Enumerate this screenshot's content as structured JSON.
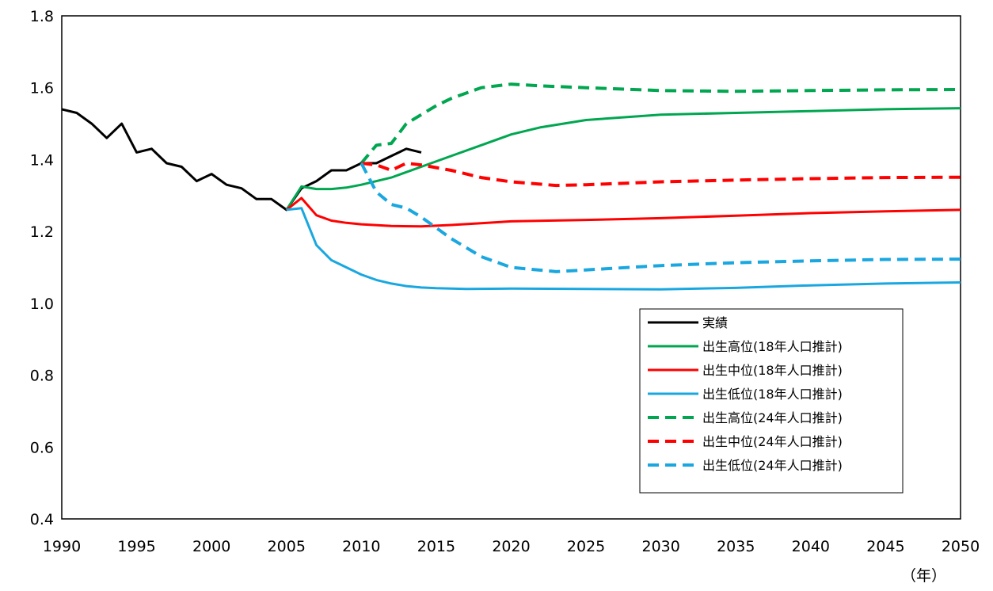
{
  "chart_data": {
    "type": "line",
    "title": "",
    "xlabel": "（年）",
    "ylabel": "",
    "xlim": [
      1990,
      2050
    ],
    "ylim": [
      0.4,
      1.8
    ],
    "xticks": [
      1990,
      1995,
      2000,
      2005,
      2010,
      2015,
      2020,
      2025,
      2030,
      2035,
      2040,
      2045,
      2050
    ],
    "yticks": [
      "0.4",
      "0.6",
      "0.8",
      "1.0",
      "1.2",
      "1.4",
      "1.6",
      "1.8"
    ],
    "grid": false,
    "legend_position": "bottom-right",
    "series": [
      {
        "name": "実績",
        "color": "#000000",
        "dash": "solid",
        "points": [
          [
            1990,
            1.54
          ],
          [
            1991,
            1.53
          ],
          [
            1992,
            1.5
          ],
          [
            1993,
            1.46
          ],
          [
            1994,
            1.5
          ],
          [
            1995,
            1.42
          ],
          [
            1996,
            1.43
          ],
          [
            1997,
            1.39
          ],
          [
            1998,
            1.38
          ],
          [
            1999,
            1.34
          ],
          [
            2000,
            1.36
          ],
          [
            2001,
            1.33
          ],
          [
            2002,
            1.32
          ],
          [
            2003,
            1.29
          ],
          [
            2004,
            1.29
          ],
          [
            2005,
            1.26
          ],
          [
            2006,
            1.32
          ],
          [
            2007,
            1.34
          ],
          [
            2008,
            1.37
          ],
          [
            2009,
            1.37
          ],
          [
            2010,
            1.39
          ],
          [
            2011,
            1.39
          ],
          [
            2012,
            1.41
          ],
          [
            2013,
            1.43
          ],
          [
            2014,
            1.42
          ]
        ]
      },
      {
        "name": "出生高位(18年人口推計)",
        "color": "#00a650",
        "dash": "solid",
        "points": [
          [
            2005,
            1.26
          ],
          [
            2006,
            1.325
          ],
          [
            2007,
            1.318
          ],
          [
            2008,
            1.318
          ],
          [
            2009,
            1.322
          ],
          [
            2010,
            1.33
          ],
          [
            2012,
            1.35
          ],
          [
            2014,
            1.38
          ],
          [
            2016,
            1.41
          ],
          [
            2018,
            1.44
          ],
          [
            2020,
            1.47
          ],
          [
            2022,
            1.49
          ],
          [
            2025,
            1.51
          ],
          [
            2030,
            1.525
          ],
          [
            2035,
            1.53
          ],
          [
            2040,
            1.535
          ],
          [
            2045,
            1.54
          ],
          [
            2050,
            1.543
          ]
        ]
      },
      {
        "name": "出生中位(18年人口推計)",
        "color": "#ff0000",
        "dash": "solid",
        "points": [
          [
            2005,
            1.26
          ],
          [
            2006,
            1.293
          ],
          [
            2007,
            1.245
          ],
          [
            2008,
            1.23
          ],
          [
            2009,
            1.224
          ],
          [
            2010,
            1.22
          ],
          [
            2012,
            1.215
          ],
          [
            2014,
            1.214
          ],
          [
            2016,
            1.218
          ],
          [
            2018,
            1.223
          ],
          [
            2020,
            1.228
          ],
          [
            2025,
            1.232
          ],
          [
            2030,
            1.237
          ],
          [
            2035,
            1.244
          ],
          [
            2040,
            1.251
          ],
          [
            2045,
            1.256
          ],
          [
            2050,
            1.26
          ]
        ]
      },
      {
        "name": "出生低位(18年人口推計)",
        "color": "#1aa7e0",
        "dash": "solid",
        "points": [
          [
            2005,
            1.26
          ],
          [
            2006,
            1.265
          ],
          [
            2007,
            1.162
          ],
          [
            2008,
            1.12
          ],
          [
            2009,
            1.1
          ],
          [
            2010,
            1.08
          ],
          [
            2011,
            1.065
          ],
          [
            2012,
            1.055
          ],
          [
            2013,
            1.048
          ],
          [
            2014,
            1.044
          ],
          [
            2015,
            1.042
          ],
          [
            2017,
            1.04
          ],
          [
            2020,
            1.041
          ],
          [
            2025,
            1.04
          ],
          [
            2030,
            1.039
          ],
          [
            2035,
            1.043
          ],
          [
            2040,
            1.05
          ],
          [
            2045,
            1.055
          ],
          [
            2050,
            1.058
          ]
        ]
      },
      {
        "name": "出生高位(24年人口推計)",
        "color": "#00a650",
        "dash": "dash",
        "points": [
          [
            2010,
            1.39
          ],
          [
            2011,
            1.44
          ],
          [
            2012,
            1.445
          ],
          [
            2013,
            1.5
          ],
          [
            2014,
            1.525
          ],
          [
            2015,
            1.55
          ],
          [
            2016,
            1.57
          ],
          [
            2018,
            1.6
          ],
          [
            2020,
            1.61
          ],
          [
            2022,
            1.605
          ],
          [
            2025,
            1.6
          ],
          [
            2030,
            1.592
          ],
          [
            2035,
            1.59
          ],
          [
            2040,
            1.592
          ],
          [
            2045,
            1.594
          ],
          [
            2050,
            1.595
          ]
        ]
      },
      {
        "name": "出生中位(24年人口推計)",
        "color": "#ff0000",
        "dash": "dash",
        "points": [
          [
            2010,
            1.39
          ],
          [
            2011,
            1.385
          ],
          [
            2012,
            1.37
          ],
          [
            2013,
            1.39
          ],
          [
            2014,
            1.385
          ],
          [
            2016,
            1.37
          ],
          [
            2018,
            1.35
          ],
          [
            2020,
            1.338
          ],
          [
            2023,
            1.328
          ],
          [
            2025,
            1.33
          ],
          [
            2030,
            1.338
          ],
          [
            2035,
            1.343
          ],
          [
            2040,
            1.347
          ],
          [
            2045,
            1.35
          ],
          [
            2050,
            1.351
          ]
        ]
      },
      {
        "name": "出生低位(24年人口推計)",
        "color": "#1aa7e0",
        "dash": "dash",
        "points": [
          [
            2010,
            1.39
          ],
          [
            2011,
            1.31
          ],
          [
            2012,
            1.275
          ],
          [
            2013,
            1.265
          ],
          [
            2014,
            1.24
          ],
          [
            2016,
            1.18
          ],
          [
            2018,
            1.13
          ],
          [
            2020,
            1.1
          ],
          [
            2023,
            1.088
          ],
          [
            2025,
            1.093
          ],
          [
            2030,
            1.105
          ],
          [
            2035,
            1.113
          ],
          [
            2040,
            1.118
          ],
          [
            2045,
            1.122
          ],
          [
            2050,
            1.123
          ]
        ]
      }
    ]
  }
}
